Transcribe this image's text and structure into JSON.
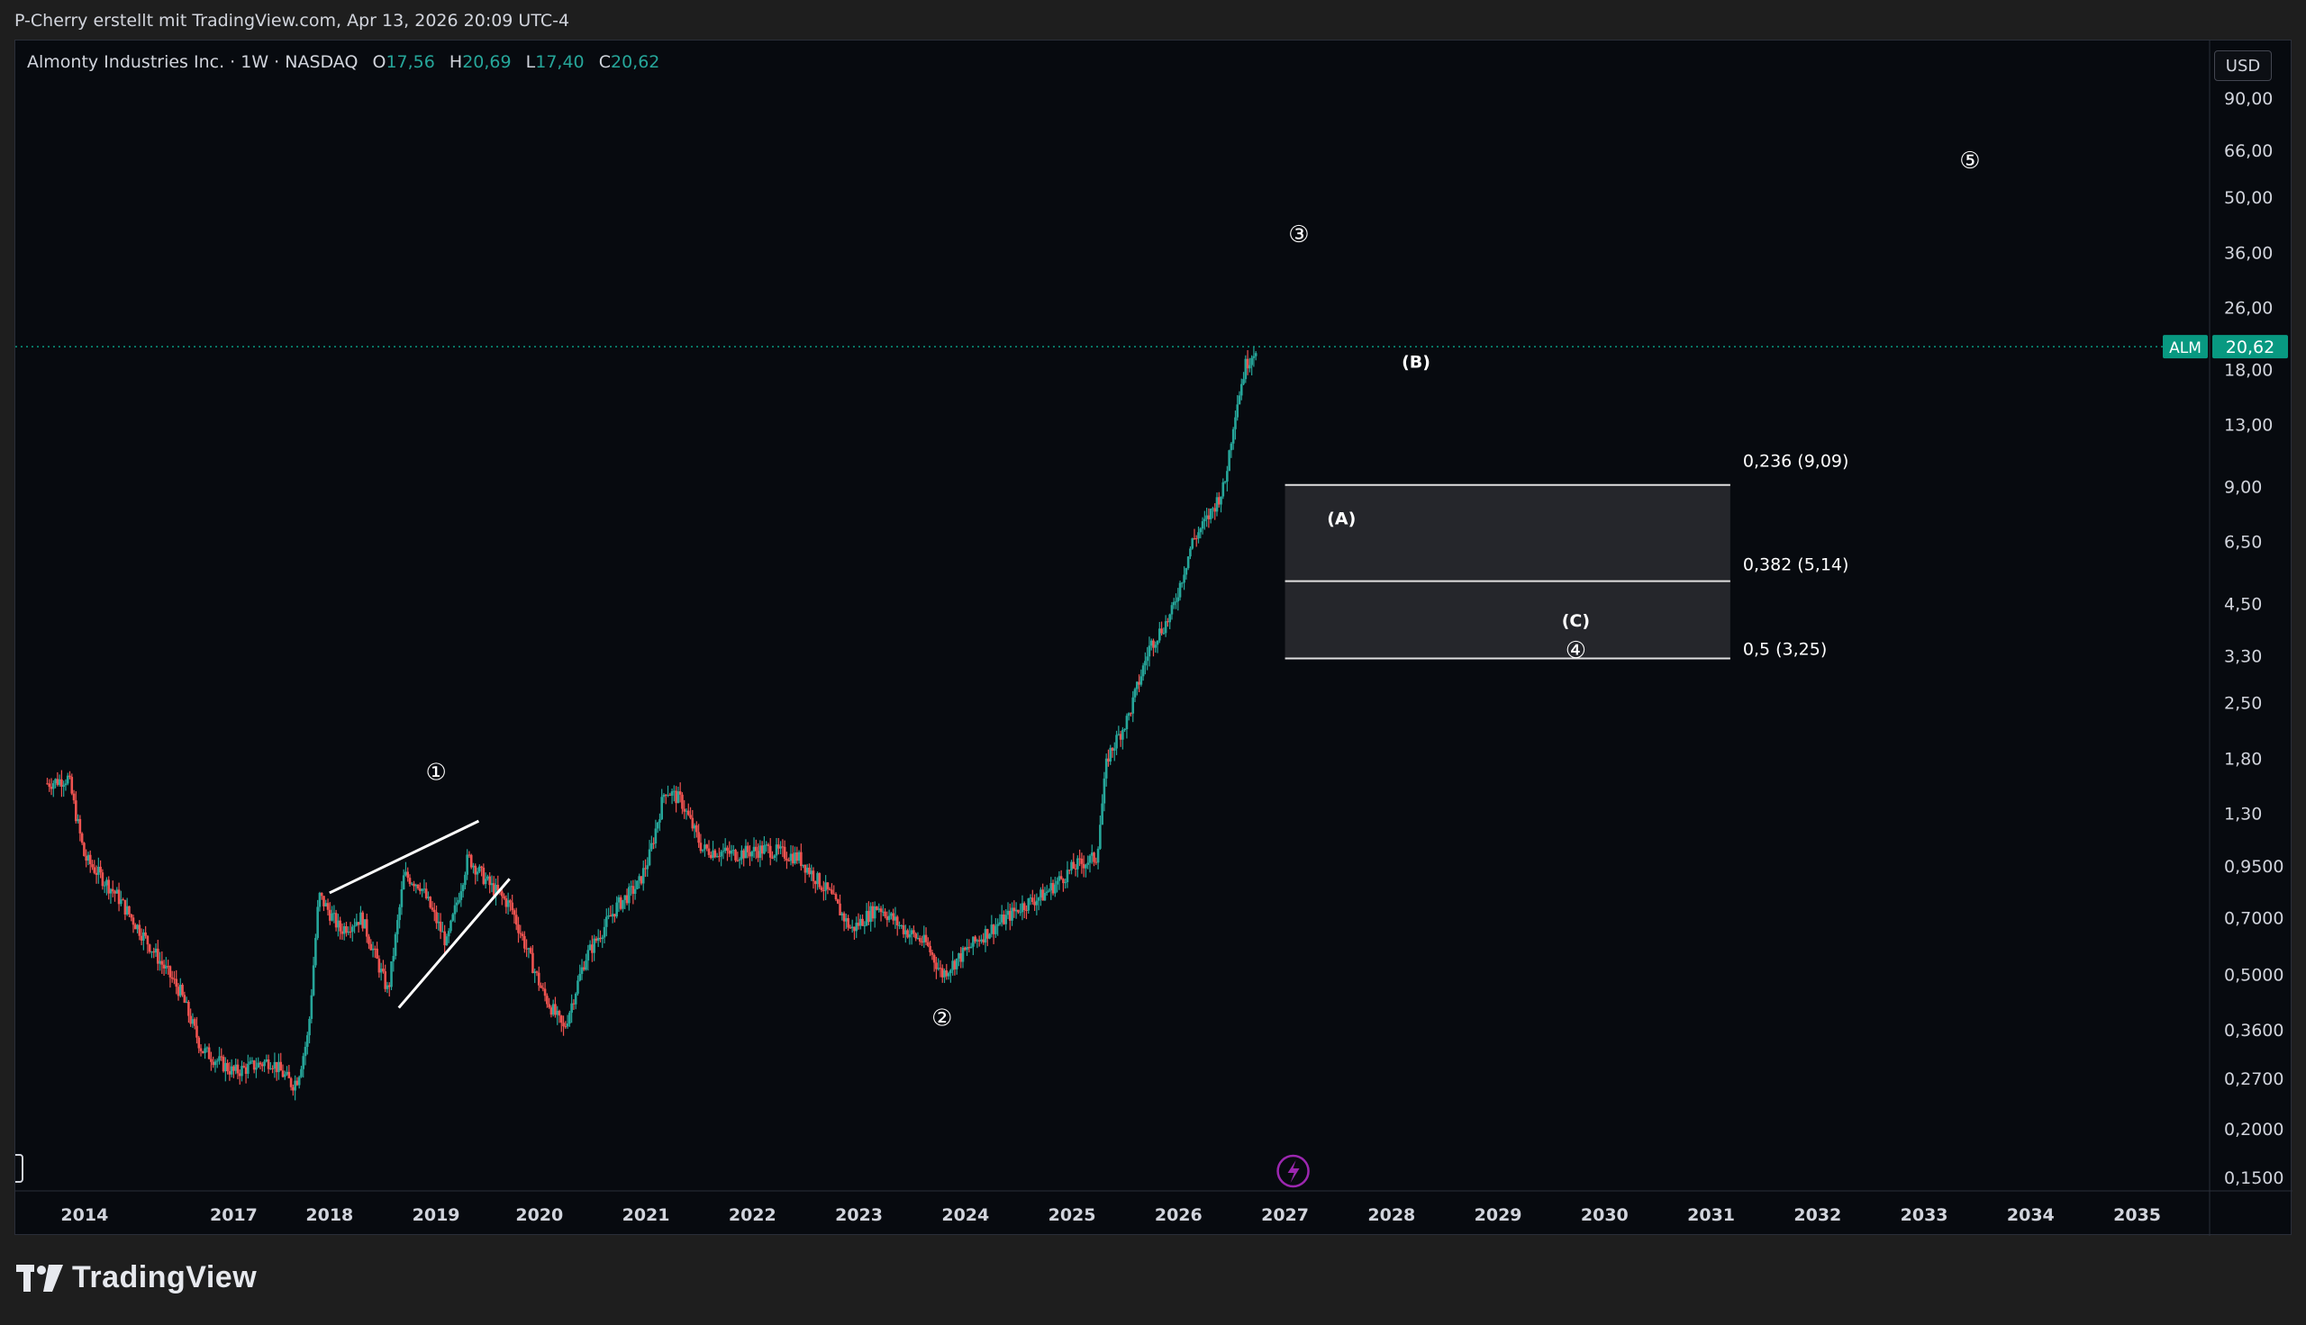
{
  "credit": "P-Cherry erstellt mit TradingView.com, Apr 13, 2026 20:09 UTC-4",
  "legend": {
    "symbol_line": "Almonty Industries Inc. · 1W · NASDAQ",
    "open_label": "O",
    "open": "17,56",
    "high_label": "H",
    "high": "20,69",
    "low_label": "L",
    "low": "17,40",
    "close_label": "C",
    "close": "20,62"
  },
  "currency": "USD",
  "brand": "TradingView",
  "colors": {
    "up": "#26a69a",
    "down": "#ef5350",
    "background": "#070a0f",
    "price_tag": "#089981",
    "drawing": "#ffffff",
    "fib_zone": "#25262b"
  },
  "chart_data": {
    "type": "candlestick",
    "scale": "log",
    "ylim": [
      0.14,
      120
    ],
    "xlim": [
      "2013-08-01",
      "2036-02-01"
    ],
    "y_ticks": [
      {
        "value": 90,
        "label": "90,00"
      },
      {
        "value": 66,
        "label": "66,00"
      },
      {
        "value": 50,
        "label": "50,00"
      },
      {
        "value": 36,
        "label": "36,00"
      },
      {
        "value": 26,
        "label": "26,00"
      },
      {
        "value": 18,
        "label": "18,00"
      },
      {
        "value": 13,
        "label": "13,00"
      },
      {
        "value": 9,
        "label": "9,00"
      },
      {
        "value": 6.5,
        "label": "6,50"
      },
      {
        "value": 4.5,
        "label": "4,50"
      },
      {
        "value": 3.3,
        "label": "3,30"
      },
      {
        "value": 2.5,
        "label": "2,50"
      },
      {
        "value": 1.8,
        "label": "1,80"
      },
      {
        "value": 1.3,
        "label": "1,30"
      },
      {
        "value": 0.95,
        "label": "0,9500"
      },
      {
        "value": 0.7,
        "label": "0,7000"
      },
      {
        "value": 0.5,
        "label": "0,5000"
      },
      {
        "value": 0.36,
        "label": "0,3600"
      },
      {
        "value": 0.27,
        "label": "0,2700"
      },
      {
        "value": 0.2,
        "label": "0,2000"
      },
      {
        "value": 0.15,
        "label": "0,1500"
      }
    ],
    "x_ticks": [
      "2014",
      "2017",
      "2018",
      "2019",
      "2020",
      "2021",
      "2022",
      "2023",
      "2024",
      "2025",
      "2026",
      "2027",
      "2028",
      "2029",
      "2030",
      "2031",
      "2032",
      "2033",
      "2034",
      "2035"
    ],
    "x_tick_pos": [
      2014.0,
      2015.4,
      2016.3,
      2017.3,
      2018.27,
      2019.27,
      2020.27,
      2021.27,
      2022.27,
      2023.27,
      2024.27,
      2025.27,
      2026.27,
      2027.27,
      2028.27,
      2029.27,
      2030.27,
      2031.27,
      2032.27,
      2033.27
    ],
    "price_path": [
      [
        2013.65,
        1.55
      ],
      [
        2013.85,
        1.6
      ],
      [
        2014.0,
        1.0
      ],
      [
        2014.3,
        0.8
      ],
      [
        2014.6,
        0.6
      ],
      [
        2014.9,
        0.45
      ],
      [
        2015.1,
        0.32
      ],
      [
        2015.4,
        0.28
      ],
      [
        2015.75,
        0.3
      ],
      [
        2015.95,
        0.26
      ],
      [
        2016.0,
        0.27
      ],
      [
        2016.1,
        0.35
      ],
      [
        2016.2,
        0.8
      ],
      [
        2016.4,
        0.65
      ],
      [
        2016.6,
        0.7
      ],
      [
        2016.85,
        0.45
      ],
      [
        2017.0,
        0.9
      ],
      [
        2017.15,
        0.85
      ],
      [
        2017.4,
        0.6
      ],
      [
        2017.6,
        1.0
      ],
      [
        2017.8,
        0.85
      ],
      [
        2018.0,
        0.75
      ],
      [
        2018.3,
        0.45
      ],
      [
        2018.5,
        0.36
      ],
      [
        2018.7,
        0.55
      ],
      [
        2019.0,
        0.75
      ],
      [
        2019.2,
        0.85
      ],
      [
        2019.3,
        1.0
      ],
      [
        2019.45,
        1.5
      ],
      [
        2019.6,
        1.4
      ],
      [
        2019.8,
        1.05
      ],
      [
        2020.1,
        1.02
      ],
      [
        2020.4,
        1.05
      ],
      [
        2020.7,
        1.0
      ],
      [
        2021.0,
        0.8
      ],
      [
        2021.2,
        0.65
      ],
      [
        2021.45,
        0.75
      ],
      [
        2021.7,
        0.65
      ],
      [
        2021.9,
        0.6
      ],
      [
        2022.05,
        0.5
      ],
      [
        2022.4,
        0.62
      ],
      [
        2022.8,
        0.75
      ],
      [
        2023.0,
        0.8
      ],
      [
        2023.3,
        0.95
      ],
      [
        2023.5,
        1.0
      ],
      [
        2023.6,
        1.8
      ],
      [
        2023.8,
        2.3
      ],
      [
        2024.0,
        3.5
      ],
      [
        2024.2,
        4.2
      ],
      [
        2024.4,
        6.5
      ],
      [
        2024.55,
        7.5
      ],
      [
        2024.7,
        9.0
      ],
      [
        2024.8,
        14.0
      ],
      [
        2024.9,
        18.5
      ],
      [
        2025.0,
        20.62
      ]
    ],
    "last_price": {
      "symbol": "ALM",
      "value": 20.62,
      "label": "20,62"
    },
    "fib_levels": [
      {
        "ratio_label": "0,236 (9,09)",
        "price": 9.09
      },
      {
        "ratio_label": "0,382 (5,14)",
        "price": 5.14
      },
      {
        "ratio_label": "0,5 (3,25)",
        "price": 3.25
      }
    ],
    "fib_x_range": [
      2025.27,
      2029.45
    ],
    "wave_labels": [
      {
        "text": "①",
        "x": 2017.3,
        "price": 1.65
      },
      {
        "text": "②",
        "x": 2022.05,
        "price": 0.385
      },
      {
        "text": "③",
        "x": 2025.4,
        "price": 40
      },
      {
        "text": "④",
        "x": 2028.0,
        "price": 3.4
      },
      {
        "text": "⑤",
        "x": 2031.7,
        "price": 62
      },
      {
        "text": "(A)",
        "x": 2025.8,
        "price": 7.5
      },
      {
        "text": "(B)",
        "x": 2026.5,
        "price": 19
      },
      {
        "text": "(C)",
        "x": 2028.0,
        "price": 4.1
      }
    ],
    "trendlines": [
      {
        "from": [
          2016.3,
          0.81
        ],
        "to": [
          2017.7,
          1.24
        ]
      },
      {
        "from": [
          2016.95,
          0.41
        ],
        "to": [
          2017.99,
          0.88
        ]
      }
    ]
  }
}
